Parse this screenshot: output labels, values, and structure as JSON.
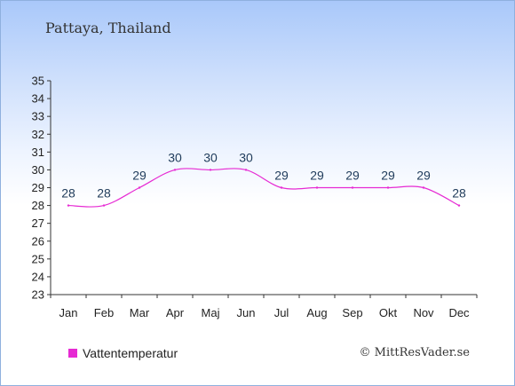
{
  "title": "Pattaya, Thailand",
  "chart_data": {
    "type": "line",
    "categories": [
      "Jan",
      "Feb",
      "Mar",
      "Apr",
      "Maj",
      "Jun",
      "Jul",
      "Aug",
      "Sep",
      "Okt",
      "Nov",
      "Dec"
    ],
    "series": [
      {
        "name": "Vattentemperatur",
        "values": [
          28,
          28,
          29,
          30,
          30,
          30,
          29,
          29,
          29,
          29,
          29,
          28
        ],
        "color": "#e62ad3"
      }
    ],
    "ylim": [
      23,
      35
    ],
    "yticks": [
      23,
      24,
      25,
      26,
      27,
      28,
      29,
      30,
      31,
      32,
      33,
      34,
      35
    ],
    "grid": false,
    "legend_position": "bottom-left"
  },
  "legend": {
    "label": "Vattentemperatur",
    "color": "#e62ad3"
  },
  "credit": "© MittResVader.se"
}
